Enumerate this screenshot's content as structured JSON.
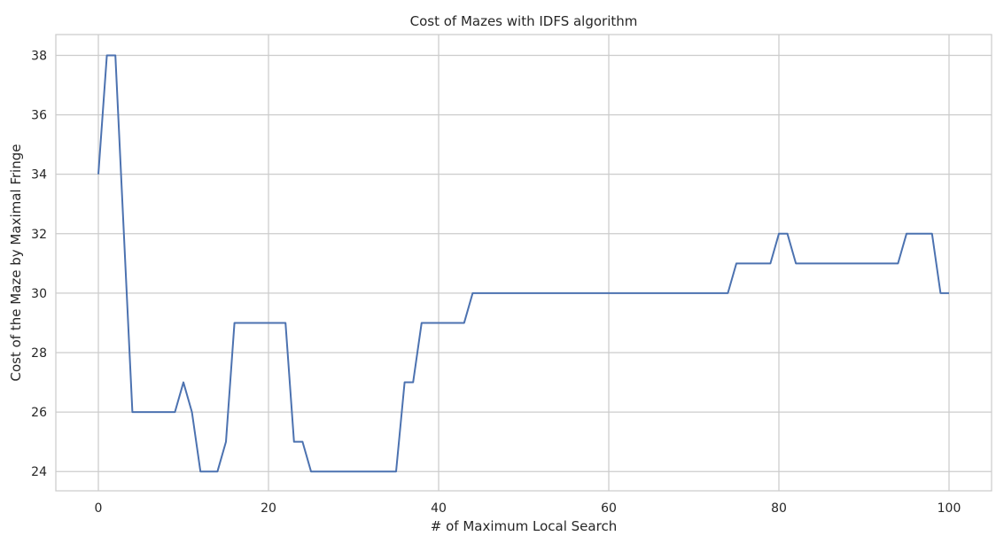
{
  "chart_data": {
    "type": "line",
    "title": "Cost of Mazes with IDFS algorithm",
    "xlabel": "# of Maximum Local Search",
    "ylabel": "Cost of the Maze by Maximal Fringe",
    "xlim": [
      -5,
      105
    ],
    "ylim": [
      23.35,
      38.7
    ],
    "xticks": [
      0,
      20,
      40,
      60,
      80,
      100
    ],
    "yticks": [
      24,
      26,
      28,
      30,
      32,
      34,
      36,
      38
    ],
    "grid": true,
    "line_color": "#4c72b0",
    "grid_color": "#cccccc",
    "series": [
      {
        "x": [
          0,
          1,
          2,
          3,
          4,
          5,
          6,
          7,
          8,
          9,
          10,
          11,
          12,
          13,
          14,
          15,
          16,
          17,
          18,
          19,
          20,
          21,
          22,
          23,
          24,
          25,
          26,
          27,
          28,
          29,
          30,
          31,
          32,
          33,
          34,
          35,
          36,
          37,
          38,
          39,
          40,
          41,
          42,
          43,
          44,
          45,
          46,
          47,
          48,
          49,
          50,
          51,
          52,
          53,
          54,
          55,
          56,
          57,
          58,
          59,
          60,
          61,
          62,
          63,
          64,
          65,
          66,
          67,
          68,
          69,
          70,
          71,
          72,
          73,
          74,
          75,
          76,
          77,
          78,
          79,
          80,
          81,
          82,
          83,
          84,
          85,
          86,
          87,
          88,
          89,
          90,
          91,
          92,
          93,
          94,
          95,
          96,
          97,
          98,
          99,
          100
        ],
        "values": [
          34,
          38,
          38,
          32,
          26,
          26,
          26,
          26,
          26,
          26,
          27,
          26,
          24,
          24,
          24,
          25,
          29,
          29,
          29,
          29,
          29,
          29,
          29,
          25,
          25,
          24,
          24,
          24,
          24,
          24,
          24,
          24,
          24,
          24,
          24,
          24,
          27,
          27,
          29,
          29,
          29,
          29,
          29,
          29,
          30,
          30,
          30,
          30,
          30,
          30,
          30,
          30,
          30,
          30,
          30,
          30,
          30,
          30,
          30,
          30,
          30,
          30,
          30,
          30,
          30,
          30,
          30,
          30,
          30,
          30,
          30,
          30,
          30,
          30,
          30,
          31,
          31,
          31,
          31,
          31,
          32,
          32,
          31,
          31,
          31,
          31,
          31,
          31,
          31,
          31,
          31,
          31,
          31,
          31,
          31,
          32,
          32,
          32,
          32,
          30,
          30
        ]
      }
    ]
  }
}
